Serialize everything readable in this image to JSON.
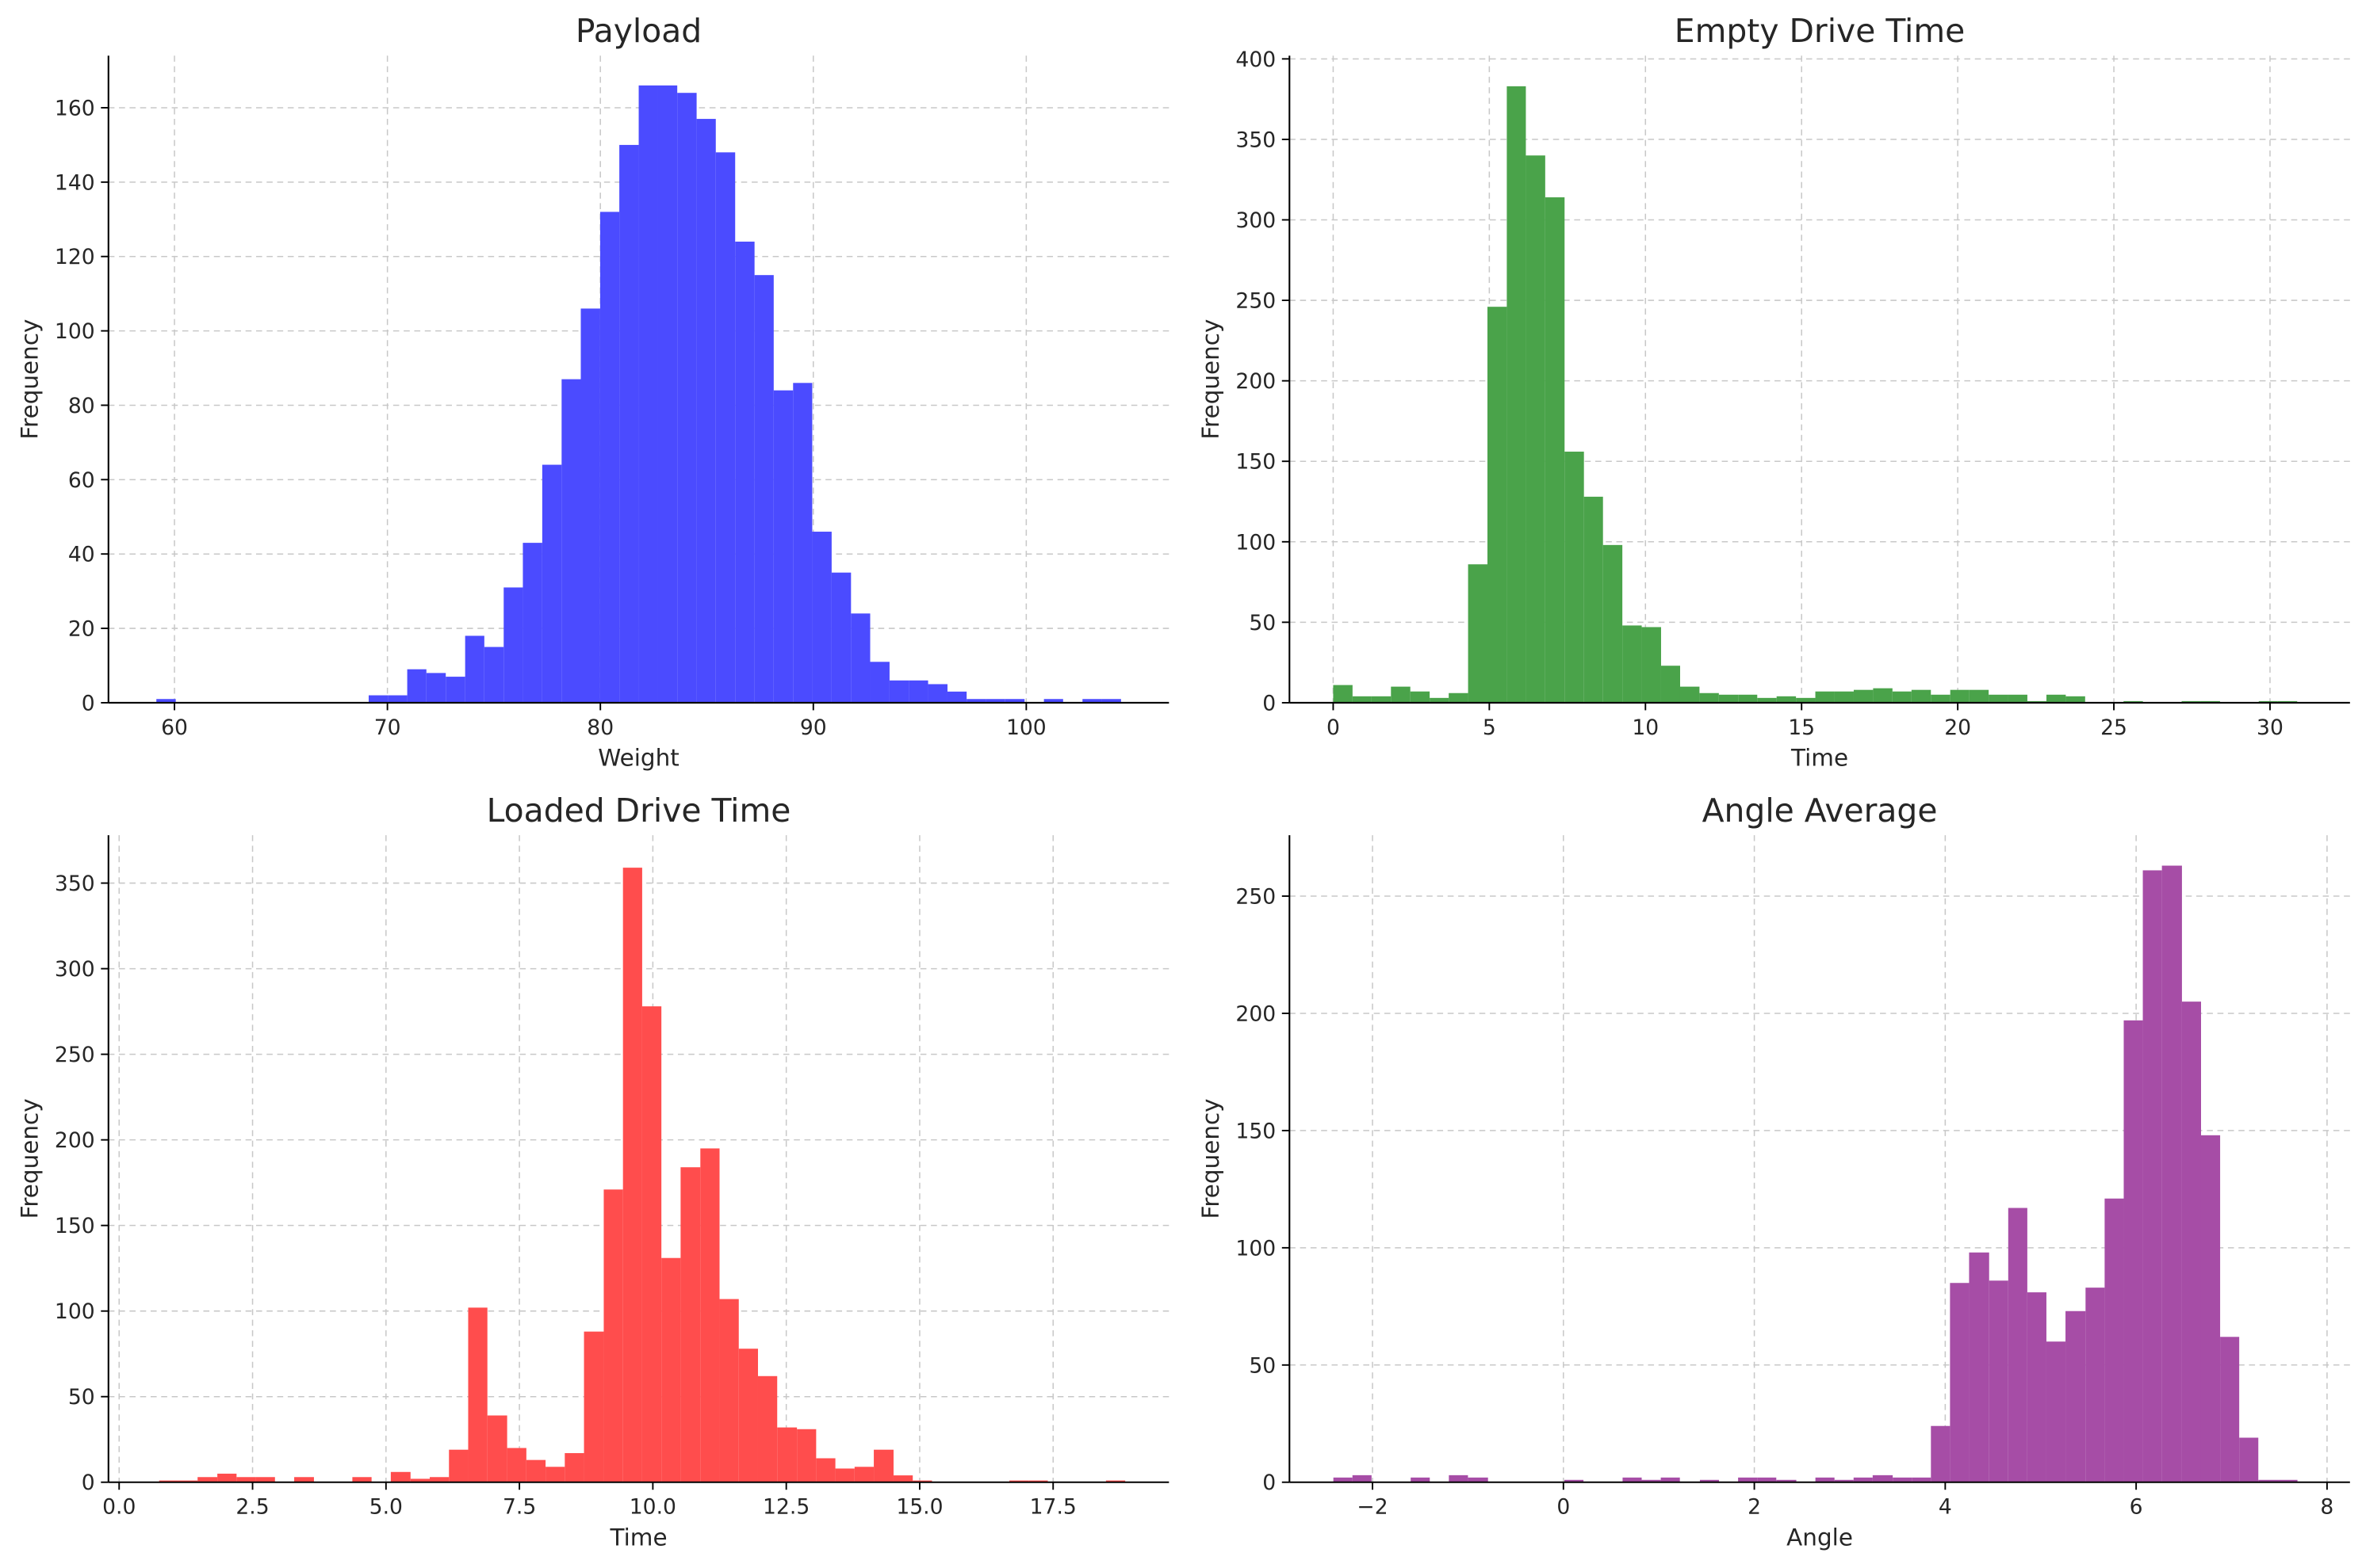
{
  "chart_data": [
    {
      "type": "histogram",
      "title": "Payload",
      "xlabel": "Weight",
      "ylabel": "Frequency",
      "color": "#4b4bff",
      "grid": true,
      "bins": [
        59.15,
        60.06,
        60.96,
        61.87,
        62.77,
        63.68,
        64.59,
        65.49,
        66.4,
        67.3,
        68.21,
        69.12,
        70.02,
        70.93,
        71.83,
        72.74,
        73.65,
        74.55,
        75.46,
        76.36,
        77.27,
        78.18,
        79.08,
        79.99,
        80.89,
        81.8,
        82.71,
        83.61,
        84.52,
        85.42,
        86.33,
        87.24,
        88.14,
        89.05,
        89.95,
        90.86,
        91.77,
        92.67,
        93.58,
        94.48,
        95.39,
        96.3,
        97.2,
        98.11,
        99.01,
        99.92,
        100.83,
        101.73,
        102.64,
        103.54,
        104.45
      ],
      "values": [
        1,
        0,
        0,
        0,
        0,
        0,
        0,
        0,
        0,
        0,
        0,
        2,
        2,
        9,
        8,
        7,
        18,
        15,
        31,
        43,
        64,
        87,
        106,
        132,
        150,
        166,
        166,
        164,
        157,
        148,
        124,
        115,
        84,
        86,
        46,
        35,
        24,
        11,
        6,
        6,
        5,
        3,
        1,
        1,
        1,
        0,
        1,
        0,
        1,
        1
      ],
      "xlim": [
        56.9,
        106.7
      ],
      "ylim": [
        0,
        174
      ],
      "xticks": [
        60,
        70,
        80,
        90,
        100
      ],
      "yticks": [
        0,
        20,
        40,
        60,
        80,
        100,
        120,
        140,
        160
      ]
    },
    {
      "type": "histogram",
      "title": "Empty Drive Time",
      "xlabel": "Time",
      "ylabel": "Frequency",
      "color": "#4aa34a",
      "grid": true,
      "bins": [
        0,
        0.62,
        1.23,
        1.85,
        2.47,
        3.09,
        3.7,
        4.32,
        4.94,
        5.56,
        6.17,
        6.79,
        7.41,
        8.03,
        8.64,
        9.26,
        9.88,
        10.5,
        11.11,
        11.73,
        12.35,
        12.97,
        13.58,
        14.2,
        14.82,
        15.44,
        16.05,
        16.67,
        17.29,
        17.91,
        18.52,
        19.14,
        19.76,
        20.37,
        20.99,
        21.61,
        22.23,
        22.84,
        23.46,
        24.08,
        24.7,
        25.31,
        25.93,
        26.55,
        27.17,
        27.78,
        28.4,
        29.02,
        29.64,
        30.25,
        30.87
      ],
      "values": [
        11,
        4,
        4,
        10,
        7,
        3,
        6,
        86,
        246,
        383,
        340,
        314,
        156,
        128,
        98,
        48,
        47,
        23,
        10,
        6,
        5,
        5,
        3,
        4,
        3,
        7,
        7,
        8,
        9,
        7,
        8,
        5,
        8,
        8,
        5,
        5,
        1,
        5,
        4,
        0,
        0,
        1,
        0,
        0,
        1,
        1,
        0,
        0,
        1,
        1
      ],
      "xlim": [
        -1.4,
        32.56
      ],
      "ylim": [
        0,
        402
      ],
      "xticks": [
        0,
        5,
        10,
        15,
        20,
        25,
        30
      ],
      "yticks": [
        0,
        50,
        100,
        150,
        200,
        250,
        300,
        350,
        400
      ]
    },
    {
      "type": "histogram",
      "title": "Loaded Drive Time",
      "xlabel": "Time",
      "ylabel": "Frequency",
      "color": "#ff4d4d",
      "grid": true,
      "bins": [
        0.75,
        1.11,
        1.47,
        1.84,
        2.2,
        2.56,
        2.92,
        3.28,
        3.65,
        4.01,
        4.37,
        4.73,
        5.09,
        5.46,
        5.82,
        6.18,
        6.54,
        6.9,
        7.27,
        7.63,
        7.99,
        8.35,
        8.71,
        9.08,
        9.44,
        9.8,
        10.16,
        10.52,
        10.89,
        11.25,
        11.61,
        11.97,
        12.33,
        12.7,
        13.06,
        13.42,
        13.78,
        14.14,
        14.51,
        14.87,
        15.23,
        15.59,
        15.95,
        16.32,
        16.68,
        17.04,
        17.4,
        17.76,
        18.13,
        18.49,
        18.85
      ],
      "values": [
        1,
        1,
        3,
        5,
        3,
        3,
        0,
        3,
        0,
        0,
        3,
        0,
        6,
        2,
        3,
        19,
        102,
        39,
        20,
        13,
        9,
        17,
        88,
        171,
        359,
        278,
        131,
        184,
        195,
        107,
        78,
        62,
        32,
        31,
        14,
        8,
        9,
        19,
        4,
        1,
        0,
        0,
        0,
        0,
        1,
        1,
        0,
        0,
        0,
        1
      ],
      "xlim": [
        -0.2,
        19.67
      ],
      "ylim": [
        0,
        378
      ],
      "xticks": [
        {
          "value": 0,
          "label": "0.0"
        },
        2.5,
        {
          "value": 5,
          "label": "5.0"
        },
        7.5,
        {
          "value": 10,
          "label": "10.0"
        },
        12.5,
        {
          "value": 15,
          "label": "15.0"
        },
        17.5
      ],
      "yticks": [
        0,
        50,
        100,
        150,
        200,
        250,
        300,
        350
      ]
    },
    {
      "type": "histogram",
      "title": "Angle Average",
      "xlabel": "Angle",
      "ylabel": "Frequency",
      "color": "#a64da6",
      "grid": true,
      "bins": [
        -2.41,
        -2.21,
        -2.01,
        -1.8,
        -1.6,
        -1.4,
        -1.2,
        -1.0,
        -0.79,
        -0.59,
        -0.39,
        -0.19,
        0.01,
        0.21,
        0.42,
        0.62,
        0.82,
        1.02,
        1.22,
        1.43,
        1.63,
        1.83,
        2.03,
        2.23,
        2.44,
        2.64,
        2.84,
        3.04,
        3.24,
        3.45,
        3.65,
        3.85,
        4.05,
        4.25,
        4.46,
        4.66,
        4.86,
        5.06,
        5.26,
        5.47,
        5.67,
        5.87,
        6.07,
        6.27,
        6.48,
        6.68,
        6.88,
        7.08,
        7.28,
        7.49,
        7.69
      ],
      "values": [
        2,
        3,
        0,
        0,
        2,
        0,
        3,
        2,
        0,
        0,
        0,
        0,
        1,
        0,
        0,
        2,
        1,
        2,
        0,
        1,
        0,
        2,
        2,
        1,
        0,
        2,
        1,
        2,
        3,
        2,
        2,
        24,
        85,
        98,
        86,
        117,
        81,
        60,
        73,
        83,
        121,
        197,
        261,
        263,
        205,
        148,
        62,
        19,
        1,
        1
      ],
      "xlim": [
        -2.87,
        8.24
      ],
      "ylim": [
        0,
        276
      ],
      "xticks": [
        {
          "value": -2,
          "label": "−2"
        },
        0,
        2,
        4,
        6,
        8
      ],
      "yticks": [
        0,
        50,
        100,
        150,
        200,
        250
      ]
    }
  ]
}
